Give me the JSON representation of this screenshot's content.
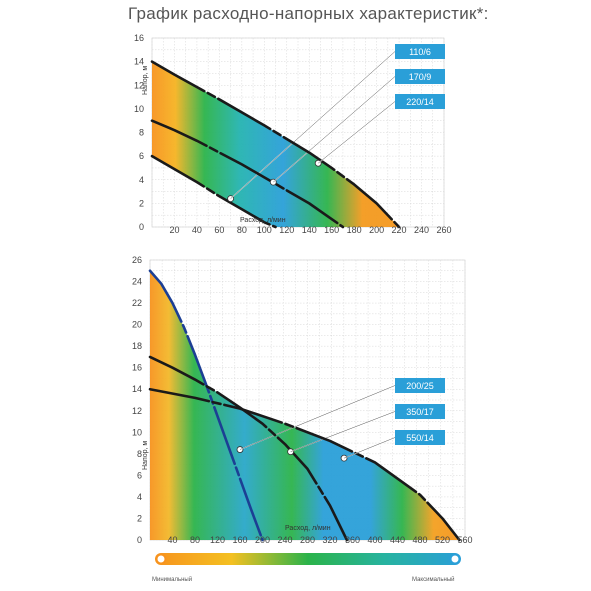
{
  "page": {
    "title": "График расходно-напорных характеристик*:"
  },
  "colors": {
    "orange": "#f7931e",
    "green": "#2bb34a",
    "blue": "#2a9fd8",
    "curve": "#1a1a1a",
    "steep_curve": "#1c3f94",
    "tag_bg": "#2a9fd8"
  },
  "legend_bar": {
    "min_label": "Минимальный",
    "max_label": "Максимальный"
  },
  "chart_data": [
    {
      "type": "line",
      "xlabel": "Расход, л/мин",
      "ylabel": "Напор, м",
      "xlim": [
        0,
        260
      ],
      "ylim": [
        0,
        16
      ],
      "x_ticks": [
        "20",
        "40",
        "60",
        "80",
        "100",
        "120",
        "140",
        "160",
        "180",
        "200",
        "220",
        "240",
        "260"
      ],
      "y_ticks": [
        "0",
        "2",
        "4",
        "6",
        "8",
        "10",
        "12",
        "14",
        "16"
      ],
      "series": [
        {
          "name": "110/6",
          "x": [
            0,
            20,
            40,
            60,
            80,
            100,
            110
          ],
          "y": [
            6,
            4.9,
            3.8,
            2.6,
            1.5,
            0.4,
            0
          ],
          "marker": [
            70,
            2.4
          ]
        },
        {
          "name": "170/9",
          "x": [
            0,
            20,
            40,
            60,
            80,
            100,
            120,
            140,
            155,
            170
          ],
          "y": [
            9,
            8.2,
            7.3,
            6.3,
            5.3,
            4.2,
            3.1,
            2.0,
            1.0,
            0
          ],
          "marker": [
            108,
            3.8
          ]
        },
        {
          "name": "220/14",
          "x": [
            0,
            20,
            60,
            100,
            140,
            160,
            180,
            200,
            220
          ],
          "y": [
            14,
            12.9,
            10.8,
            8.6,
            6.3,
            5.0,
            3.6,
            2.0,
            0
          ],
          "marker": [
            148,
            5.4
          ]
        }
      ],
      "grid": true,
      "background": "orange-green-blue gradient",
      "labels_placement": "top-right"
    },
    {
      "type": "line",
      "xlabel": "Расход, л/мин",
      "ylabel": "Напор, м",
      "xlim": [
        0,
        560
      ],
      "ylim": [
        0,
        26
      ],
      "x_ticks": [
        "40",
        "80",
        "120",
        "160",
        "200",
        "240",
        "280",
        "320",
        "360",
        "400",
        "440",
        "480",
        "520",
        "560"
      ],
      "y_ticks": [
        "0",
        "2",
        "4",
        "6",
        "8",
        "10",
        "12",
        "14",
        "16",
        "18",
        "20",
        "22",
        "24",
        "26"
      ],
      "series": [
        {
          "name": "200/25",
          "x": [
            0,
            20,
            40,
            60,
            80,
            100,
            120,
            140,
            160,
            180,
            200
          ],
          "y": [
            25,
            23.8,
            22.0,
            19.8,
            17.2,
            14.4,
            11.5,
            8.6,
            5.7,
            2.8,
            0
          ],
          "marker": [
            160,
            8.4
          ]
        },
        {
          "name": "350/17",
          "x": [
            0,
            40,
            80,
            120,
            160,
            200,
            240,
            280,
            320,
            350
          ],
          "y": [
            17,
            16,
            14.9,
            13.7,
            12.3,
            10.8,
            8.9,
            6.6,
            3.2,
            0
          ],
          "marker": [
            250,
            8.2
          ]
        },
        {
          "name": "550/14",
          "x": [
            0,
            80,
            160,
            240,
            320,
            400,
            480,
            520,
            550
          ],
          "y": [
            14,
            13.2,
            12.2,
            10.8,
            9.2,
            7.2,
            4.2,
            2.0,
            0
          ],
          "marker": [
            345,
            7.6
          ]
        }
      ],
      "grid": true,
      "background": "orange-green-blue gradient",
      "labels_placement": "right"
    }
  ]
}
